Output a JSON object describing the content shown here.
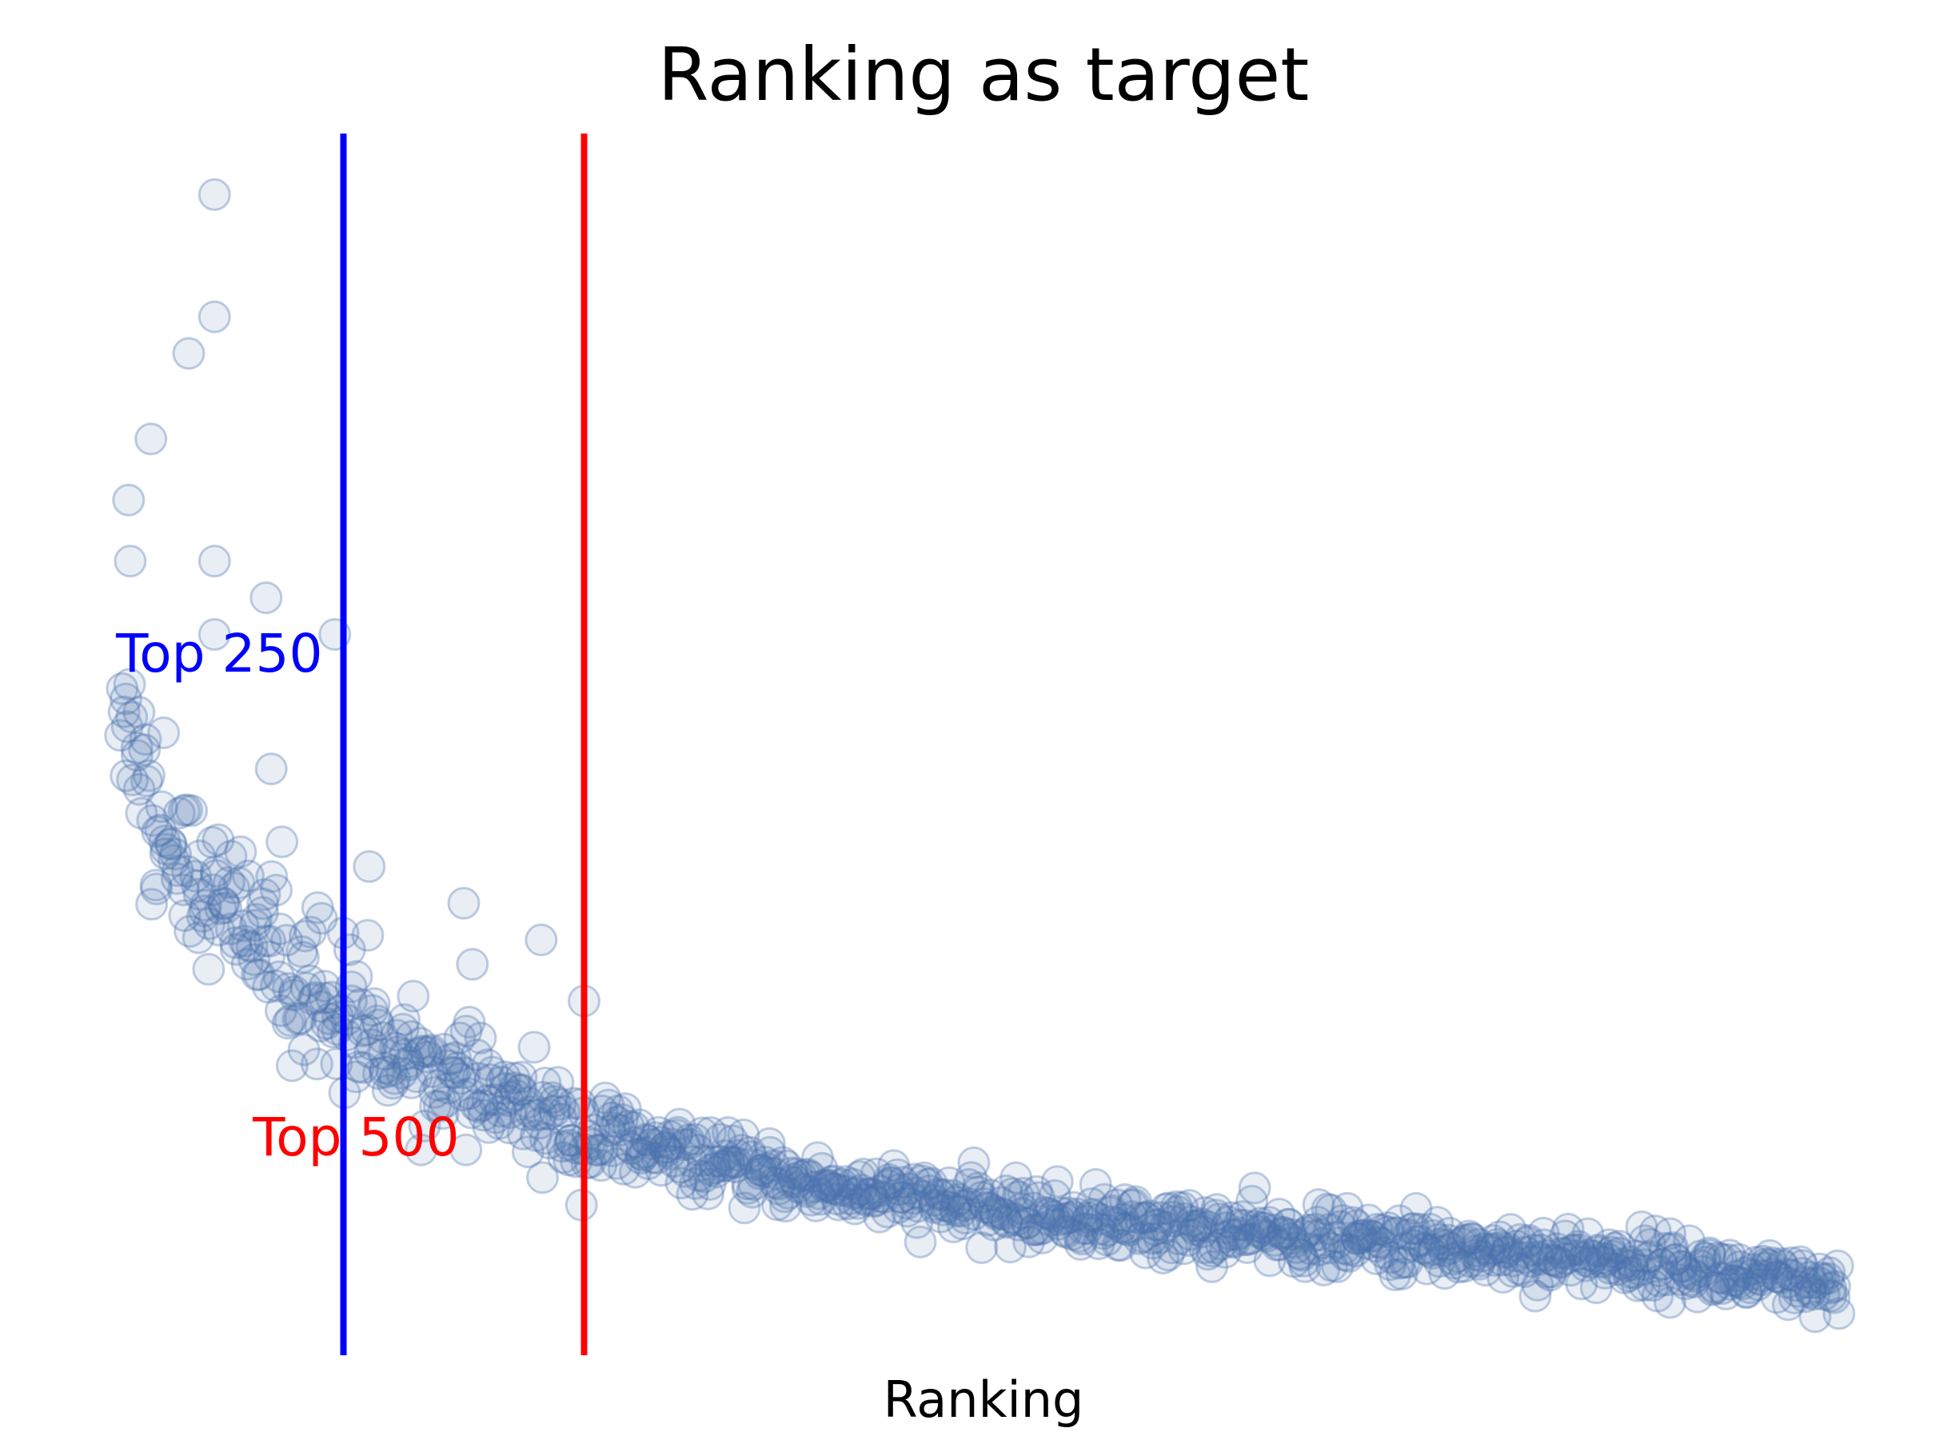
{
  "chart_data": {
    "type": "scatter",
    "title": "Ranking as target",
    "xlabel": "Ranking",
    "ylabel": "",
    "xlim": [
      0,
      1000
    ],
    "ylim": [
      0,
      1
    ],
    "axes_visible": false,
    "grid": false,
    "marker": {
      "shape": "circle",
      "face_color": "#4c72b0",
      "face_alpha": 0.12,
      "edge_alpha": 0.35
    },
    "reference_lines": [
      {
        "orientation": "vertical",
        "x": 130,
        "label": "Top 250",
        "color": "#0000ff"
      },
      {
        "orientation": "vertical",
        "x": 270,
        "label": "Top 500",
        "color": "#ff0000"
      }
    ],
    "trend_anchor_points": [
      {
        "x": 0,
        "y": 0.54
      },
      {
        "x": 20,
        "y": 0.44
      },
      {
        "x": 50,
        "y": 0.38
      },
      {
        "x": 100,
        "y": 0.31
      },
      {
        "x": 130,
        "y": 0.27
      },
      {
        "x": 200,
        "y": 0.22
      },
      {
        "x": 270,
        "y": 0.18
      },
      {
        "x": 400,
        "y": 0.14
      },
      {
        "x": 500,
        "y": 0.12
      },
      {
        "x": 600,
        "y": 0.105
      },
      {
        "x": 700,
        "y": 0.095
      },
      {
        "x": 800,
        "y": 0.085
      },
      {
        "x": 900,
        "y": 0.075
      },
      {
        "x": 1000,
        "y": 0.05
      }
    ],
    "outliers": [
      {
        "x": 55,
        "y": 0.95
      },
      {
        "x": 55,
        "y": 0.85
      },
      {
        "x": 40,
        "y": 0.82
      },
      {
        "x": 18,
        "y": 0.75
      },
      {
        "x": 5,
        "y": 0.7
      },
      {
        "x": 6,
        "y": 0.65
      },
      {
        "x": 55,
        "y": 0.65
      },
      {
        "x": 85,
        "y": 0.62
      },
      {
        "x": 55,
        "y": 0.59
      },
      {
        "x": 125,
        "y": 0.59
      },
      {
        "x": 88,
        "y": 0.48
      },
      {
        "x": 145,
        "y": 0.4
      },
      {
        "x": 200,
        "y": 0.37
      },
      {
        "x": 245,
        "y": 0.34
      },
      {
        "x": 205,
        "y": 0.32
      },
      {
        "x": 270,
        "y": 0.29
      }
    ]
  }
}
